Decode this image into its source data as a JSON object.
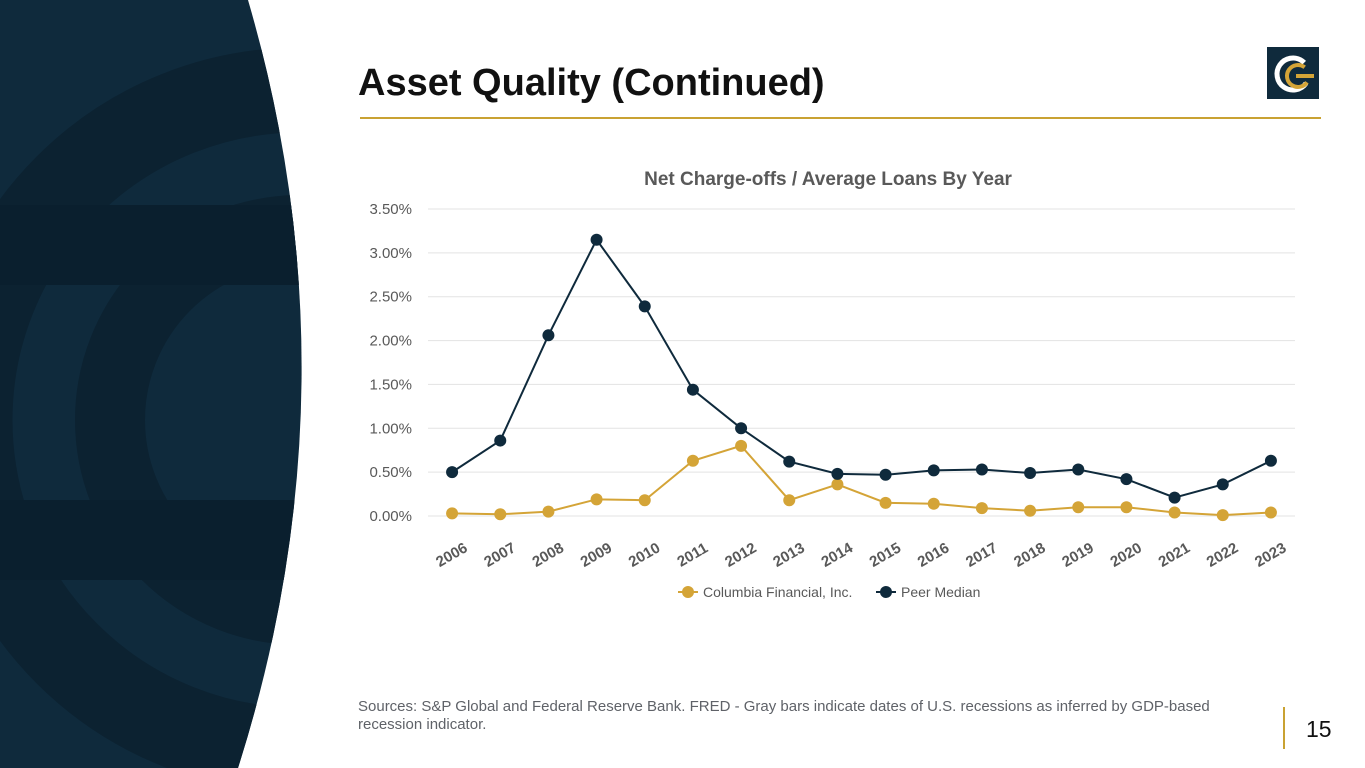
{
  "slide": {
    "title": "Asset Quality (Continued)",
    "footnote": "Sources: S&P Global and Federal Reserve Bank. FRED - Gray bars indicate dates of U.S. recessions as inferred by GDP-based recession indicator.",
    "page_number": "15"
  },
  "colors": {
    "navy": "#0f2a3c",
    "gold": "#d4a437",
    "rule": "#c9a232",
    "grid": "#e3e3e3"
  },
  "chart_data": {
    "type": "line",
    "title": "Net Charge-offs / Average Loans By Year",
    "xlabel": "",
    "ylabel": "",
    "ylim": [
      0,
      3.5
    ],
    "y_ticks": [
      "0.00%",
      "0.50%",
      "1.00%",
      "1.50%",
      "2.00%",
      "2.50%",
      "3.00%",
      "3.50%"
    ],
    "categories": [
      "2006",
      "2007",
      "2008",
      "2009",
      "2010",
      "2011",
      "2012",
      "2013",
      "2014",
      "2015",
      "2016",
      "2017",
      "2018",
      "2019",
      "2020",
      "2021",
      "2022",
      "2023"
    ],
    "series": [
      {
        "name": "Columbia Financial, Inc.",
        "color": "#d4a437",
        "values": [
          0.03,
          0.02,
          0.05,
          0.19,
          0.18,
          0.63,
          0.8,
          0.18,
          0.36,
          0.15,
          0.14,
          0.09,
          0.06,
          0.1,
          0.1,
          0.04,
          0.01,
          0.04
        ]
      },
      {
        "name": "Peer Median",
        "color": "#0f2a3c",
        "values": [
          0.5,
          0.86,
          2.06,
          3.15,
          2.39,
          1.44,
          1.0,
          0.62,
          0.48,
          0.47,
          0.52,
          0.53,
          0.49,
          0.53,
          0.42,
          0.21,
          0.36,
          0.63
        ]
      }
    ],
    "legend_position": "bottom"
  }
}
